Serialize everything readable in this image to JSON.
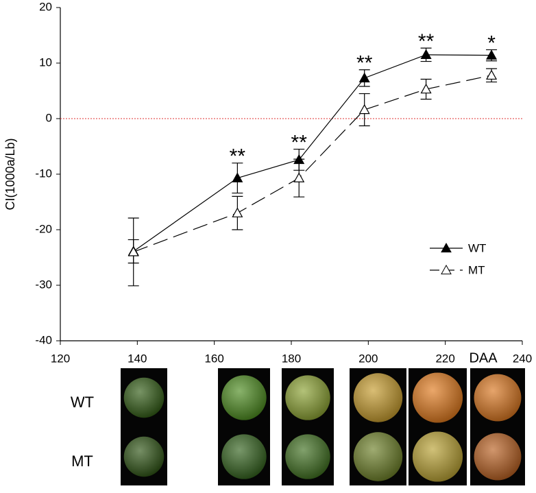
{
  "chart_data": {
    "type": "line",
    "ylabel": "CI(1000a/Lb)",
    "xlabel": "DAA",
    "x": [
      139,
      166,
      182,
      199,
      215,
      232
    ],
    "series": [
      {
        "name": "WT",
        "color": "#000000",
        "style": "solid",
        "marker": "filled",
        "values": [
          -23.9,
          -10.7,
          -7.4,
          7.3,
          11.5,
          11.4
        ],
        "errors": [
          2.1,
          2.7,
          1.9,
          1.5,
          1.2,
          1.0
        ]
      },
      {
        "name": "MT",
        "color": "#000000",
        "style": "dashed",
        "marker": "open",
        "values": [
          -24,
          -17,
          -10.7,
          1.6,
          5.3,
          7.8
        ],
        "errors": [
          6.1,
          3.0,
          3.4,
          2.9,
          1.8,
          1.2
        ]
      }
    ],
    "annotations": [
      {
        "text": "**",
        "x": 166
      },
      {
        "text": "**",
        "x": 182
      },
      {
        "text": "**",
        "x": 199
      },
      {
        "text": "**",
        "x": 215
      },
      {
        "text": "*",
        "x": 232
      }
    ],
    "reference_line": {
      "value": 0,
      "color": "#e03030"
    },
    "xlim": [
      120,
      240
    ],
    "xticks": [
      120,
      140,
      160,
      180,
      200,
      220,
      240
    ],
    "ylim": [
      -40,
      20
    ],
    "yticks": [
      -40,
      -30,
      -20,
      -10,
      0,
      10,
      20
    ],
    "legend": "right",
    "photo_rows": [
      "WT",
      "MT"
    ]
  }
}
